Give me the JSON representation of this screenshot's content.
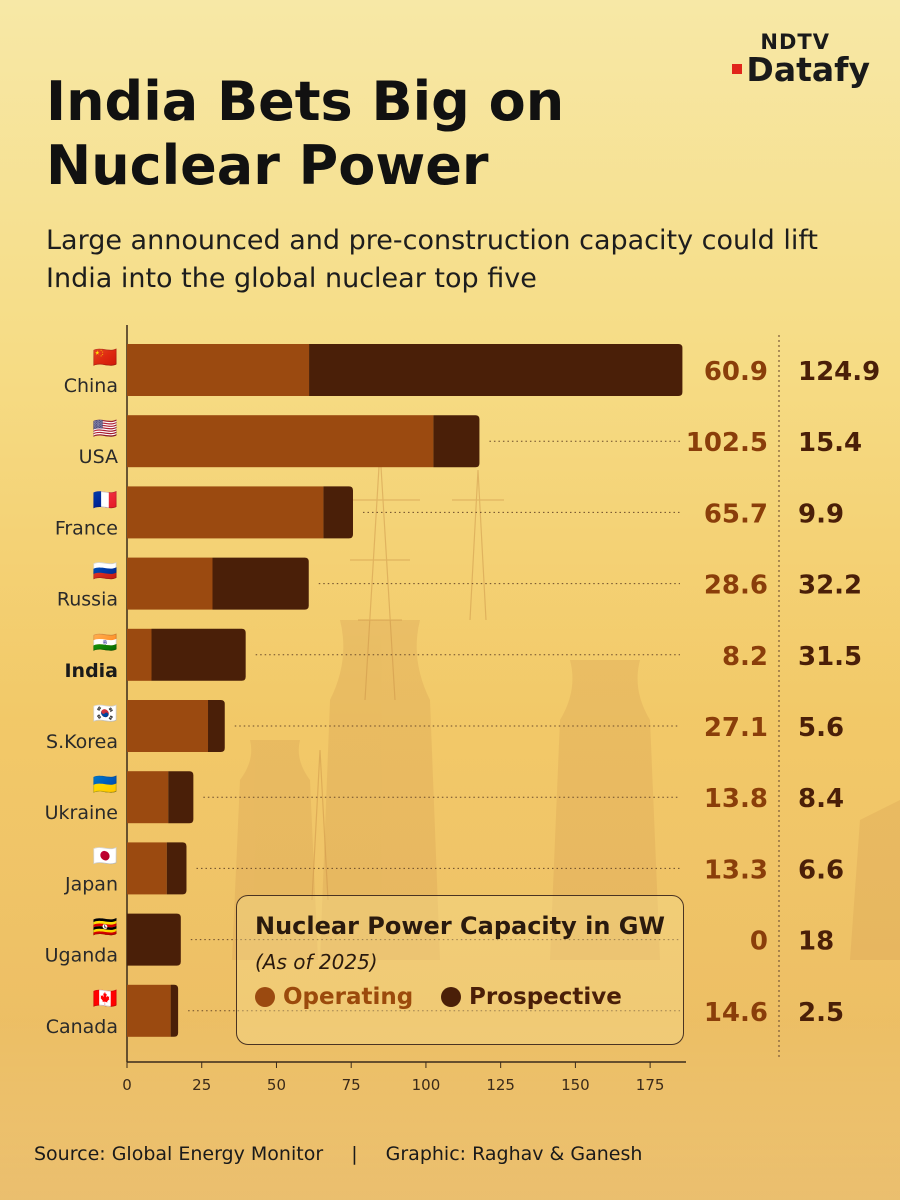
{
  "header": {
    "title": "India Bets Big on Nuclear Power",
    "subtitle": "Large announced and pre-construction capacity could lift India into the global nuclear top five",
    "logo_top": "NDTV",
    "logo_bottom": "Datafy"
  },
  "legend": {
    "title": "Nuclear Power Capacity in GW",
    "subtitle": "(As of 2025)",
    "operating_label": "Operating",
    "prospective_label": "Prospective"
  },
  "footer": {
    "source": "Source: Global Energy Monitor",
    "separator": "|",
    "graphic": "Graphic: Raghav & Ganesh"
  },
  "colors": {
    "operating": "#9b4a10",
    "prospective": "#4a1f08",
    "operating_text": "#8a3e0a",
    "prospective_text": "#4a1f08"
  },
  "chart_data": {
    "type": "bar",
    "orientation": "horizontal",
    "stacked": true,
    "title": "Nuclear Power Capacity in GW",
    "subtitle": "(As of 2025)",
    "categories": [
      "China",
      "USA",
      "France",
      "Russia",
      "India",
      "S.Korea",
      "Ukraine",
      "Japan",
      "Uganda",
      "Canada"
    ],
    "flags": [
      "🇨🇳",
      "🇺🇸",
      "🇫🇷",
      "🇷🇺",
      "🇮🇳",
      "🇰🇷",
      "🇺🇦",
      "🇯🇵",
      "🇺🇬",
      "🇨🇦"
    ],
    "highlight": "India",
    "series": [
      {
        "name": "Operating",
        "values": [
          60.9,
          102.5,
          65.7,
          28.6,
          8.2,
          27.1,
          13.8,
          13.3,
          0,
          14.6
        ]
      },
      {
        "name": "Prospective",
        "values": [
          124.9,
          15.4,
          9.9,
          32.2,
          31.5,
          5.6,
          8.4,
          6.6,
          18,
          2.5
        ]
      }
    ],
    "operating_labels": [
      "60.9",
      "102.5",
      "65.7",
      "28.6",
      "8.2",
      "27.1",
      "13.8",
      "13.3",
      "0",
      "14.6"
    ],
    "prospective_labels": [
      "124.9",
      "15.4",
      "9.9",
      "32.2",
      "31.5",
      "5.6",
      "8.4",
      "6.6",
      "18",
      "2.5"
    ],
    "xlim": [
      0,
      187
    ],
    "xticks": [
      0,
      25,
      50,
      75,
      100,
      125,
      150,
      175
    ],
    "xtick_labels": [
      "0",
      "25",
      "50",
      "75",
      "100",
      "125",
      "150",
      "175"
    ]
  }
}
